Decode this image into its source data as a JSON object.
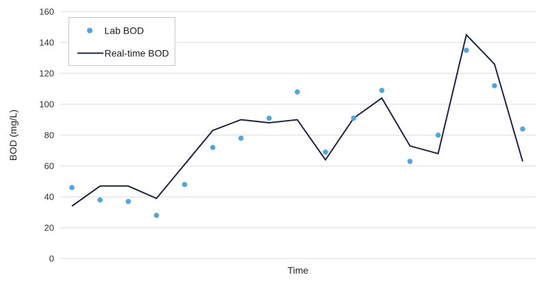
{
  "chart": {
    "xlabel": "Time",
    "ylabel": "BOD (mg/L)",
    "legend": {
      "position": "top-left",
      "items": [
        {
          "label": "Lab BOD",
          "marker": "dot"
        },
        {
          "label": "Real-time BOD",
          "marker": "line"
        }
      ]
    },
    "colors": {
      "lab_bod_marker": "#4FA7DD",
      "realtime_bod_line": "#1B2440",
      "gridline": "#D9D9D9",
      "legend_border": "#C6C6C6",
      "text": "#333333",
      "background": "#FFFFFF"
    }
  },
  "chart_data": {
    "type": "line",
    "title": "",
    "xlabel": "Time",
    "ylabel": "BOD (mg/L)",
    "x": [
      1,
      2,
      3,
      4,
      5,
      6,
      7,
      8,
      9,
      10,
      11,
      12,
      13,
      14,
      15,
      16,
      17
    ],
    "x_tick_labels": [],
    "ylim": [
      0,
      160
    ],
    "yticks": [
      0,
      20,
      40,
      60,
      80,
      100,
      120,
      140,
      160
    ],
    "grid": "horizontal",
    "legend_position": "top-left",
    "series": [
      {
        "name": "Lab BOD",
        "type": "scatter",
        "color": "#4FA7DD",
        "values": [
          46,
          38,
          37,
          28,
          48,
          72,
          78,
          91,
          108,
          69,
          91,
          109,
          63,
          80,
          135,
          112,
          84
        ]
      },
      {
        "name": "Real-time BOD",
        "type": "line",
        "color": "#1B2440",
        "values": [
          34,
          47,
          47,
          39,
          61,
          83,
          90,
          88,
          90,
          64,
          91,
          104,
          73,
          68,
          145,
          126,
          63
        ]
      }
    ]
  }
}
